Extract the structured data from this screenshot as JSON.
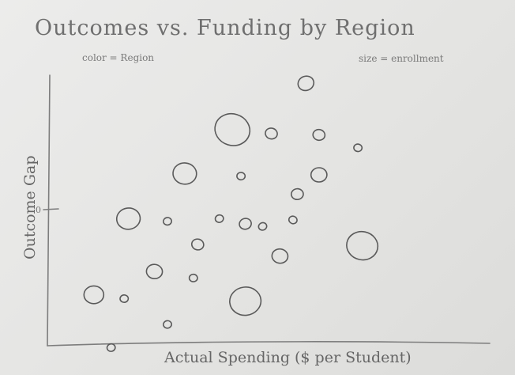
{
  "chart_data": {
    "type": "scatter",
    "title": "Outcomes vs. Funding by Region",
    "annotations": {
      "color_note": "color = Region",
      "size_note": "size = enrollment"
    },
    "xlabel": "Actual Spending ($ per Student)",
    "ylabel": "Outcome Gap",
    "xlim": [
      0,
      100
    ],
    "ylim": [
      -1,
      1
    ],
    "y_ticks": [
      {
        "value": 0,
        "label": "0"
      }
    ],
    "grid": false,
    "points": [
      {
        "x": 59,
        "y": 0.98,
        "size": 3
      },
      {
        "x": 42,
        "y": 0.62,
        "size": 8
      },
      {
        "x": 51,
        "y": 0.59,
        "size": 2
      },
      {
        "x": 62,
        "y": 0.58,
        "size": 2
      },
      {
        "x": 71,
        "y": 0.48,
        "size": 1
      },
      {
        "x": 31,
        "y": 0.28,
        "size": 5
      },
      {
        "x": 44,
        "y": 0.26,
        "size": 1
      },
      {
        "x": 62,
        "y": 0.27,
        "size": 3
      },
      {
        "x": 57,
        "y": 0.12,
        "size": 2
      },
      {
        "x": 18,
        "y": -0.07,
        "size": 5
      },
      {
        "x": 27,
        "y": -0.09,
        "size": 1
      },
      {
        "x": 39,
        "y": -0.07,
        "size": 1
      },
      {
        "x": 45,
        "y": -0.11,
        "size": 2
      },
      {
        "x": 49,
        "y": -0.13,
        "size": 1
      },
      {
        "x": 56,
        "y": -0.08,
        "size": 1
      },
      {
        "x": 34,
        "y": -0.27,
        "size": 2
      },
      {
        "x": 72,
        "y": -0.28,
        "size": 7
      },
      {
        "x": 53,
        "y": -0.36,
        "size": 3
      },
      {
        "x": 24,
        "y": -0.48,
        "size": 3
      },
      {
        "x": 33,
        "y": -0.53,
        "size": 1
      },
      {
        "x": 10,
        "y": -0.66,
        "size": 4
      },
      {
        "x": 17,
        "y": -0.69,
        "size": 1
      },
      {
        "x": 45,
        "y": -0.71,
        "size": 7
      },
      {
        "x": 27,
        "y": -0.89,
        "size": 1
      },
      {
        "x": 14,
        "y": -1.07,
        "size": 1
      }
    ]
  }
}
